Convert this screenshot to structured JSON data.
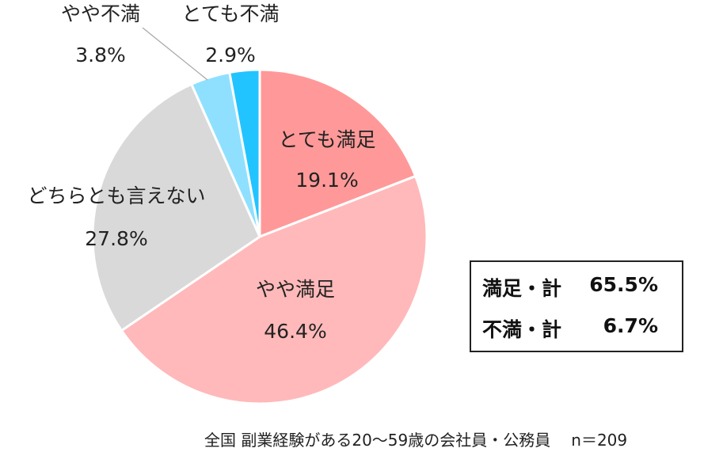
{
  "chart_data": {
    "type": "pie",
    "start_angle_deg": 0,
    "direction": "clockwise",
    "slices": [
      {
        "name": "とても満足",
        "value": 19.1,
        "label": "19.1%",
        "color": "#ff9999"
      },
      {
        "name": "やや満足",
        "value": 46.4,
        "label": "46.4%",
        "color": "#ffb9ba"
      },
      {
        "name": "どちらとも言えない",
        "value": 27.8,
        "label": "27.8%",
        "color": "#d9d9d9"
      },
      {
        "name": "やや不満",
        "value": 3.8,
        "label": "3.8%",
        "color": "#8fe0ff"
      },
      {
        "name": "とても不満",
        "value": 2.9,
        "label": "2.9%",
        "color": "#22c4ff"
      }
    ]
  },
  "summary": {
    "satisfied": {
      "name": "満足・計",
      "value": "65.5%"
    },
    "dissatisfied": {
      "name": "不満・計",
      "value": "6.7%"
    }
  },
  "footnote": {
    "text": "全国 副業経験がある20～59歳の会社員・公務員",
    "n": "n＝209"
  }
}
